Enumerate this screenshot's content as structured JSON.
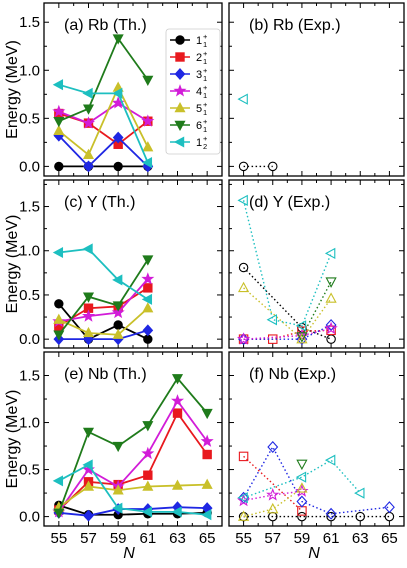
{
  "figure": {
    "ylabel": "Energy (MeV)",
    "xlabel": "N",
    "legend": [
      {
        "label": "1",
        "sub": "1",
        "sup": "+",
        "color": "#000000",
        "marker": "circle"
      },
      {
        "label": "2",
        "sub": "1",
        "sup": "+",
        "color": "#e8191e",
        "marker": "square"
      },
      {
        "label": "3",
        "sub": "1",
        "sup": "+",
        "color": "#1f27e3",
        "marker": "diamond"
      },
      {
        "label": "4",
        "sub": "1",
        "sup": "+",
        "color": "#d21cd8",
        "marker": "star"
      },
      {
        "label": "5",
        "sub": "1",
        "sup": "+",
        "color": "#c9c02a",
        "marker": "triangle-up"
      },
      {
        "label": "6",
        "sub": "1",
        "sup": "+",
        "color": "#1f7b1b",
        "marker": "triangle-down"
      },
      {
        "label": "1",
        "sub": "2",
        "sup": "+",
        "color": "#1dbfc0",
        "marker": "triangle-left"
      }
    ]
  },
  "chart_data": [
    {
      "type": "line",
      "title": "(a) Rb (Th.)",
      "style": "theory",
      "xlim": [
        54,
        66
      ],
      "ylim": [
        -0.1,
        1.7
      ],
      "xticks": [
        55,
        57,
        59,
        61,
        63,
        65
      ],
      "yticks": [
        0.0,
        0.5,
        1.0,
        1.5
      ],
      "series": [
        {
          "key": "s1",
          "x": [
            55,
            57,
            59,
            61
          ],
          "values": [
            0,
            0,
            0,
            0
          ]
        },
        {
          "key": "s2",
          "x": [
            55,
            57,
            59,
            61
          ],
          "values": [
            0.55,
            0.45,
            0.23,
            0.47
          ]
        },
        {
          "key": "s3",
          "x": [
            55,
            57,
            59,
            61
          ],
          "values": [
            0.32,
            0.0,
            0.3,
            0.0
          ]
        },
        {
          "key": "s4",
          "x": [
            55,
            57,
            59,
            61
          ],
          "values": [
            0.57,
            0.45,
            0.66,
            0.47
          ]
        },
        {
          "key": "s5",
          "x": [
            55,
            57,
            59,
            61
          ],
          "values": [
            0.37,
            0.12,
            0.82,
            0.2
          ]
        },
        {
          "key": "s6",
          "x": [
            55,
            57,
            59,
            61
          ],
          "values": [
            0.47,
            0.6,
            1.33,
            0.9
          ]
        },
        {
          "key": "s7",
          "x": [
            55,
            57,
            59,
            61
          ],
          "values": [
            0.85,
            0.76,
            0.76,
            0.04
          ]
        }
      ]
    },
    {
      "type": "scatter",
      "title": "(b) Rb (Exp.)",
      "style": "experiment",
      "xlim": [
        54,
        66
      ],
      "ylim": [
        -0.1,
        1.7
      ],
      "xticks": [
        55,
        57,
        59,
        61,
        63,
        65
      ],
      "yticks": [
        0.0,
        0.5,
        1.0,
        1.5
      ],
      "series": [
        {
          "key": "s1",
          "x": [
            55,
            57
          ],
          "values": [
            0,
            0
          ]
        },
        {
          "key": "s7",
          "x": [
            55
          ],
          "values": [
            0.7
          ]
        }
      ]
    },
    {
      "type": "line",
      "title": "(c) Y (Th.)",
      "style": "theory",
      "xlim": [
        54,
        66
      ],
      "ylim": [
        -0.1,
        1.8
      ],
      "xticks": [
        55,
        57,
        59,
        61,
        63,
        65
      ],
      "yticks": [
        0.0,
        0.5,
        1.0,
        1.5
      ],
      "series": [
        {
          "key": "s1",
          "x": [
            55,
            57,
            59,
            61
          ],
          "values": [
            0.4,
            0.0,
            0.16,
            0.0
          ]
        },
        {
          "key": "s2",
          "x": [
            55,
            57,
            59,
            61
          ],
          "values": [
            0.15,
            0.35,
            0.37,
            0.58
          ]
        },
        {
          "key": "s3",
          "x": [
            55,
            57,
            59,
            61
          ],
          "values": [
            0.0,
            0.0,
            0.0,
            0.1
          ]
        },
        {
          "key": "s4",
          "x": [
            55,
            57,
            59,
            61
          ],
          "values": [
            0.2,
            0.26,
            0.3,
            0.68
          ]
        },
        {
          "key": "s5",
          "x": [
            55,
            57,
            59,
            61
          ],
          "values": [
            0.22,
            0.07,
            0.05,
            0.35
          ]
        },
        {
          "key": "s6",
          "x": [
            55,
            57,
            59,
            61
          ],
          "values": [
            0.05,
            0.48,
            0.38,
            0.9
          ]
        },
        {
          "key": "s7",
          "x": [
            55,
            57,
            59,
            61
          ],
          "values": [
            0.98,
            1.02,
            0.67,
            0.45
          ]
        }
      ]
    },
    {
      "type": "scatter",
      "title": "(d) Y (Exp.)",
      "style": "experiment",
      "xlim": [
        54,
        66
      ],
      "ylim": [
        -0.1,
        1.8
      ],
      "xticks": [
        55,
        57,
        59,
        61,
        63,
        65
      ],
      "yticks": [
        0.0,
        0.5,
        1.0,
        1.5
      ],
      "series": [
        {
          "key": "s1",
          "x": [
            55,
            59,
            61
          ],
          "values": [
            0.81,
            0.13,
            0.0
          ]
        },
        {
          "key": "s2",
          "x": [
            55,
            57,
            59,
            61
          ],
          "values": [
            0.0,
            0.0,
            0.09,
            0.1
          ]
        },
        {
          "key": "s3",
          "x": [
            55,
            59,
            61
          ],
          "values": [
            0.0,
            0.0,
            0.16
          ]
        },
        {
          "key": "s4",
          "x": [
            55,
            59,
            61
          ],
          "values": [
            0.0,
            0.04,
            0.12
          ]
        },
        {
          "key": "s5",
          "x": [
            55,
            59,
            61
          ],
          "values": [
            0.58,
            0.0,
            0.46
          ]
        },
        {
          "key": "s6",
          "x": [
            59,
            61
          ],
          "values": [
            0.03,
            0.65
          ]
        },
        {
          "key": "s7",
          "x": [
            55,
            57,
            59,
            61
          ],
          "values": [
            1.57,
            0.22,
            0.15,
            0.97
          ]
        }
      ]
    },
    {
      "type": "line",
      "title": "(e) Nb (Th.)",
      "style": "theory",
      "xlim": [
        54,
        66
      ],
      "ylim": [
        -0.1,
        1.75
      ],
      "xticks": [
        55,
        57,
        59,
        61,
        63,
        65
      ],
      "yticks": [
        0.0,
        0.5,
        1.0,
        1.5
      ],
      "series": [
        {
          "key": "s1",
          "x": [
            55,
            57,
            59,
            61,
            63,
            65
          ],
          "values": [
            0.12,
            0.02,
            0.02,
            0.03,
            0.03,
            0.04
          ]
        },
        {
          "key": "s2",
          "x": [
            55,
            57,
            59,
            61,
            63,
            65
          ],
          "values": [
            0.07,
            0.37,
            0.34,
            0.44,
            1.1,
            0.66
          ]
        },
        {
          "key": "s3",
          "x": [
            55,
            57,
            59,
            61,
            63,
            65
          ],
          "values": [
            0.04,
            0.01,
            0.08,
            0.08,
            0.1,
            0.09
          ]
        },
        {
          "key": "s4",
          "x": [
            55,
            57,
            59,
            61,
            63,
            65
          ],
          "values": [
            0.05,
            0.5,
            0.32,
            0.67,
            1.23,
            0.8
          ]
        },
        {
          "key": "s5",
          "x": [
            55,
            57,
            59,
            61,
            63,
            65
          ],
          "values": [
            0.1,
            0.32,
            0.28,
            0.32,
            0.33,
            0.34
          ]
        },
        {
          "key": "s6",
          "x": [
            55,
            57,
            59,
            61,
            63,
            65
          ],
          "values": [
            0.04,
            0.9,
            0.75,
            0.97,
            1.47,
            1.1
          ]
        },
        {
          "key": "s7",
          "x": [
            55,
            57,
            59,
            61,
            63,
            65
          ],
          "values": [
            0.38,
            0.55,
            0.09,
            0.05,
            0.05,
            0.02
          ]
        }
      ]
    },
    {
      "type": "scatter",
      "title": "(f) Nb (Exp.)",
      "style": "experiment",
      "xlim": [
        54,
        66
      ],
      "ylim": [
        -0.1,
        1.75
      ],
      "xticks": [
        55,
        57,
        59,
        61,
        63,
        65
      ],
      "yticks": [
        0.0,
        0.5,
        1.0,
        1.5
      ],
      "series": [
        {
          "key": "s1",
          "x": [
            55,
            57,
            59,
            61,
            63,
            65
          ],
          "values": [
            0.0,
            0.0,
            0.0,
            0.0,
            0.0,
            0.0
          ]
        },
        {
          "key": "s2",
          "x": [
            55,
            59
          ],
          "values": [
            0.64,
            0.06
          ]
        },
        {
          "key": "s3",
          "x": [
            55,
            57,
            59,
            61,
            65
          ],
          "values": [
            0.2,
            0.74,
            0.16,
            0.03,
            0.1
          ]
        },
        {
          "key": "s4",
          "x": [
            55,
            57,
            59
          ],
          "values": [
            0.17,
            0.23,
            0.27
          ]
        },
        {
          "key": "s5",
          "x": [
            55,
            57,
            59
          ],
          "values": [
            0.0,
            0.08,
            0.3
          ]
        },
        {
          "key": "s6",
          "x": [
            59
          ],
          "values": [
            0.56
          ]
        },
        {
          "key": "s7",
          "x": [
            55,
            59,
            61,
            63
          ],
          "values": [
            0.2,
            0.42,
            0.6,
            0.25
          ]
        }
      ]
    }
  ]
}
